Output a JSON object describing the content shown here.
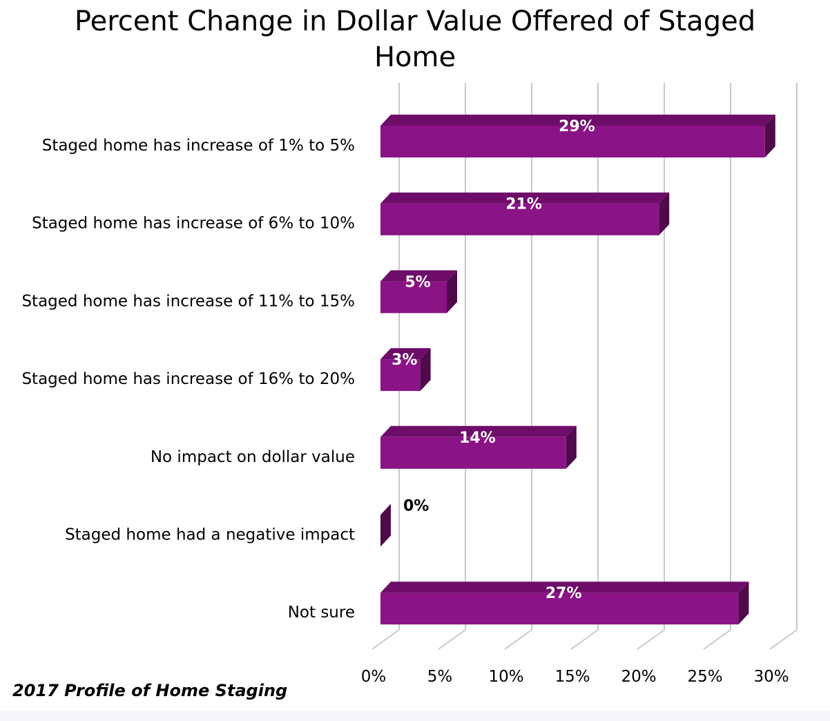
{
  "chart_data": {
    "type": "bar",
    "orientation": "horizontal",
    "title": "Percent Change in Dollar Value Offered of Staged Home",
    "title_lines": [
      "Percent Change in Dollar Value Offered of Staged",
      "Home"
    ],
    "categories": [
      "Staged home has increase of 1% to 5%",
      "Staged home has increase of 6% to 10%",
      "Staged home has increase of 11% to 15%",
      "Staged home has increase of 16% to 20%",
      "No impact on dollar value",
      "Staged home had a negative impact",
      "Not sure"
    ],
    "values": [
      29,
      21,
      5,
      3,
      14,
      0,
      27
    ],
    "data_labels": [
      "29%",
      "21%",
      "5%",
      "3%",
      "14%",
      "0%",
      "27%"
    ],
    "xlim": [
      0,
      30
    ],
    "x_ticks": [
      0,
      5,
      10,
      15,
      20,
      25,
      30
    ],
    "x_tick_labels": [
      "0%",
      "5%",
      "10%",
      "15%",
      "20%",
      "25%",
      "30%"
    ],
    "grid": true,
    "style": "3d",
    "colors": {
      "bar_front": "#8a1385",
      "bar_top": "#6e0d69",
      "bar_side": "#4f0a4b",
      "gridline": "#c8c8c8",
      "label_inside": "#ffffff",
      "label_outside": "#000000"
    }
  },
  "footer": {
    "source_note": "2017 Profile of Home Staging"
  }
}
